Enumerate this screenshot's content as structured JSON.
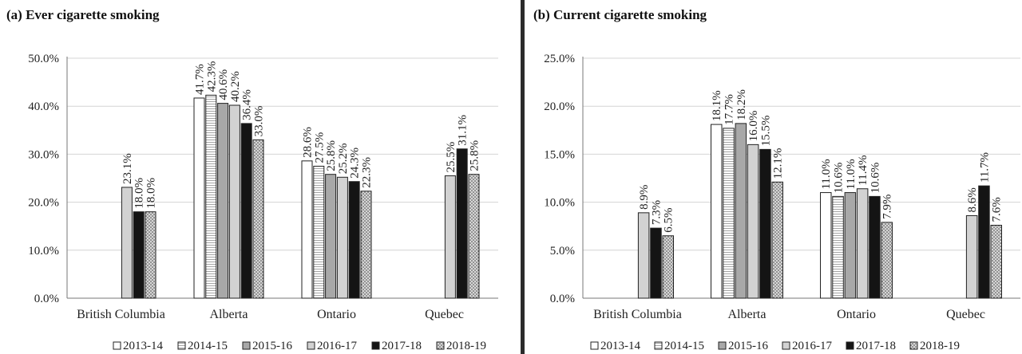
{
  "legend": {
    "seasons": [
      "2013-14",
      "2014-15",
      "2015-16",
      "2016-17",
      "2017-18",
      "2018-19"
    ],
    "patterns": [
      "white",
      "hstripe",
      "gray",
      "lightgray",
      "black",
      "dots"
    ]
  },
  "chart_data": [
    {
      "type": "bar",
      "title": "(a) Ever cigarette smoking",
      "categories": [
        "British Columbia",
        "Alberta",
        "Ontario",
        "Quebec"
      ],
      "ylim": [
        0,
        50
      ],
      "yticks": [
        "0.0%",
        "10.0%",
        "20.0%",
        "30.0%",
        "40.0%",
        "50.0%"
      ],
      "grid": true,
      "legend_position": "bottom",
      "series": [
        {
          "name": "2013-14",
          "values": [
            null,
            41.7,
            28.6,
            null
          ]
        },
        {
          "name": "2014-15",
          "values": [
            null,
            42.3,
            27.5,
            null
          ]
        },
        {
          "name": "2015-16",
          "values": [
            null,
            40.6,
            25.8,
            null
          ]
        },
        {
          "name": "2016-17",
          "values": [
            23.1,
            40.2,
            25.2,
            25.5
          ]
        },
        {
          "name": "2017-18",
          "values": [
            18.0,
            36.4,
            24.3,
            31.1
          ]
        },
        {
          "name": "2018-19",
          "values": [
            18.0,
            33.0,
            22.3,
            25.8
          ]
        }
      ]
    },
    {
      "type": "bar",
      "title": "(b) Current cigarette smoking",
      "categories": [
        "British Columbia",
        "Alberta",
        "Ontario",
        "Quebec"
      ],
      "ylim": [
        0,
        25
      ],
      "yticks": [
        "0.0%",
        "5.0%",
        "10.0%",
        "15.0%",
        "20.0%",
        "25.0%"
      ],
      "grid": true,
      "legend_position": "bottom",
      "series": [
        {
          "name": "2013-14",
          "values": [
            null,
            18.1,
            11.0,
            null
          ]
        },
        {
          "name": "2014-15",
          "values": [
            null,
            17.7,
            10.6,
            null
          ]
        },
        {
          "name": "2015-16",
          "values": [
            null,
            18.2,
            11.0,
            null
          ]
        },
        {
          "name": "2016-17",
          "values": [
            8.9,
            16.0,
            11.4,
            8.6
          ]
        },
        {
          "name": "2017-18",
          "values": [
            7.3,
            15.5,
            10.6,
            11.7
          ]
        },
        {
          "name": "2018-19",
          "values": [
            6.5,
            12.1,
            7.9,
            7.6
          ]
        }
      ]
    }
  ]
}
